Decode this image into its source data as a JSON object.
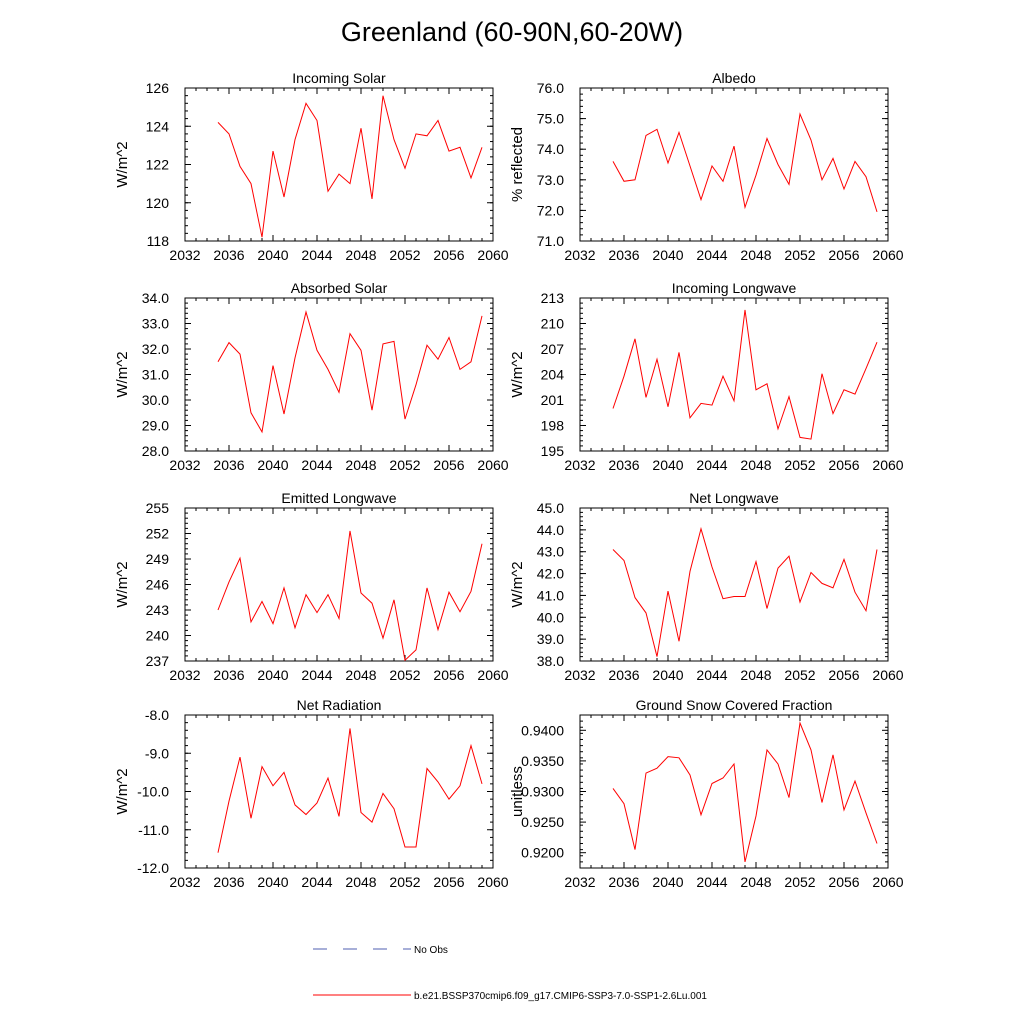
{
  "page": {
    "title": "Greenland (60-90N,60-20W)"
  },
  "legend": {
    "obs_label": "No Obs",
    "obs_color": "#4f5fb0",
    "model_label": "b.e21.BSSP370cmip6.f09_g17.CMIP6-SSP3-7.0-SSP1-2.6Lu.001",
    "model_color": "#ff0000"
  },
  "chart_data": [
    {
      "type": "line",
      "title": "Incoming Solar",
      "ylabel": "W/m^2",
      "xlim": [
        2032,
        2060
      ],
      "ylim": [
        118,
        126
      ],
      "xticks": [
        "2032",
        "2036",
        "2040",
        "2044",
        "2048",
        "2052",
        "2056",
        "2060"
      ],
      "yticks": [
        "118",
        "120",
        "122",
        "124",
        "126"
      ],
      "ytick_values": [
        118,
        120,
        122,
        124,
        126
      ],
      "x": [
        2035,
        2036,
        2037,
        2038,
        2039,
        2040,
        2041,
        2042,
        2043,
        2044,
        2045,
        2046,
        2047,
        2048,
        2049,
        2050,
        2051,
        2052,
        2053,
        2054,
        2055,
        2056,
        2057,
        2058,
        2059
      ],
      "series": [
        {
          "color": "#ff0000",
          "values": [
            124.2,
            123.6,
            121.9,
            121.0,
            118.2,
            122.7,
            120.3,
            123.3,
            125.2,
            124.3,
            120.6,
            121.5,
            121.0,
            123.9,
            120.2,
            125.6,
            123.3,
            121.8,
            123.6,
            123.5,
            124.3,
            122.7,
            122.9,
            121.3,
            122.9
          ]
        }
      ]
    },
    {
      "type": "line",
      "title": "Albedo",
      "ylabel": "% reflected",
      "xlim": [
        2032,
        2060
      ],
      "ylim": [
        71.0,
        76.0
      ],
      "xticks": [
        "2032",
        "2036",
        "2040",
        "2044",
        "2048",
        "2052",
        "2056",
        "2060"
      ],
      "yticks": [
        "71.0",
        "72.0",
        "73.0",
        "74.0",
        "75.0",
        "76.0"
      ],
      "ytick_values": [
        71,
        72,
        73,
        74,
        75,
        76
      ],
      "x": [
        2035,
        2036,
        2037,
        2038,
        2039,
        2040,
        2041,
        2042,
        2043,
        2044,
        2045,
        2046,
        2047,
        2048,
        2049,
        2050,
        2051,
        2052,
        2053,
        2054,
        2055,
        2056,
        2057,
        2058,
        2059
      ],
      "series": [
        {
          "color": "#ff0000",
          "values": [
            73.6,
            72.95,
            73.0,
            74.45,
            74.65,
            73.55,
            74.55,
            73.45,
            72.35,
            73.45,
            72.95,
            74.1,
            72.1,
            73.15,
            74.35,
            73.5,
            72.85,
            75.15,
            74.3,
            73.0,
            73.7,
            72.7,
            73.6,
            73.1,
            71.95
          ]
        }
      ]
    },
    {
      "type": "line",
      "title": "Absorbed Solar",
      "ylabel": "W/m^2",
      "xlim": [
        2032,
        2060
      ],
      "ylim": [
        28.0,
        34.0
      ],
      "xticks": [
        "2032",
        "2036",
        "2040",
        "2044",
        "2048",
        "2052",
        "2056",
        "2060"
      ],
      "yticks": [
        "28.0",
        "29.0",
        "30.0",
        "31.0",
        "32.0",
        "33.0",
        "34.0"
      ],
      "ytick_values": [
        28,
        29,
        30,
        31,
        32,
        33,
        34
      ],
      "x": [
        2035,
        2036,
        2037,
        2038,
        2039,
        2040,
        2041,
        2042,
        2043,
        2044,
        2045,
        2046,
        2047,
        2048,
        2049,
        2050,
        2051,
        2052,
        2053,
        2054,
        2055,
        2056,
        2057,
        2058,
        2059
      ],
      "series": [
        {
          "color": "#ff0000",
          "values": [
            31.5,
            32.25,
            31.8,
            29.5,
            28.75,
            31.35,
            29.45,
            31.65,
            33.45,
            31.95,
            31.2,
            30.3,
            32.6,
            31.95,
            29.6,
            32.2,
            32.3,
            29.25,
            30.6,
            32.15,
            31.6,
            32.45,
            31.2,
            31.5,
            33.3
          ]
        }
      ]
    },
    {
      "type": "line",
      "title": "Incoming Longwave",
      "ylabel": "W/m^2",
      "xlim": [
        2032,
        2060
      ],
      "ylim": [
        195,
        213
      ],
      "xticks": [
        "2032",
        "2036",
        "2040",
        "2044",
        "2048",
        "2052",
        "2056",
        "2060"
      ],
      "yticks": [
        "195",
        "198",
        "201",
        "204",
        "207",
        "210",
        "213"
      ],
      "ytick_values": [
        195,
        198,
        201,
        204,
        207,
        210,
        213
      ],
      "x": [
        2035,
        2036,
        2037,
        2038,
        2039,
        2040,
        2041,
        2042,
        2043,
        2044,
        2045,
        2046,
        2047,
        2048,
        2049,
        2050,
        2051,
        2052,
        2053,
        2054,
        2055,
        2056,
        2057,
        2058,
        2059
      ],
      "series": [
        {
          "color": "#ff0000",
          "values": [
            200.0,
            203.8,
            208.2,
            201.3,
            205.8,
            200.2,
            206.6,
            198.9,
            200.6,
            200.4,
            203.8,
            200.9,
            211.6,
            202.2,
            202.9,
            197.6,
            201.4,
            196.6,
            196.4,
            204.1,
            199.4,
            202.2,
            201.7,
            204.7,
            207.8
          ]
        }
      ]
    },
    {
      "type": "line",
      "title": "Emitted Longwave",
      "ylabel": "W/m^2",
      "xlim": [
        2032,
        2060
      ],
      "ylim": [
        237,
        255
      ],
      "xticks": [
        "2032",
        "2036",
        "2040",
        "2044",
        "2048",
        "2052",
        "2056",
        "2060"
      ],
      "yticks": [
        "237",
        "240",
        "243",
        "246",
        "249",
        "252",
        "255"
      ],
      "ytick_values": [
        237,
        240,
        243,
        246,
        249,
        252,
        255
      ],
      "x": [
        2035,
        2036,
        2037,
        2038,
        2039,
        2040,
        2041,
        2042,
        2043,
        2044,
        2045,
        2046,
        2047,
        2048,
        2049,
        2050,
        2051,
        2052,
        2053,
        2054,
        2055,
        2056,
        2057,
        2058,
        2059
      ],
      "series": [
        {
          "color": "#ff0000",
          "values": [
            243.0,
            246.3,
            249.1,
            241.6,
            244.0,
            241.4,
            245.6,
            240.9,
            244.8,
            242.7,
            244.8,
            242.0,
            252.3,
            245.0,
            243.8,
            239.7,
            244.2,
            237.1,
            238.3,
            245.6,
            240.7,
            245.1,
            242.8,
            245.2,
            250.8
          ]
        }
      ]
    },
    {
      "type": "line",
      "title": "Net Longwave",
      "ylabel": "W/m^2",
      "xlim": [
        2032,
        2060
      ],
      "ylim": [
        38.0,
        45.0
      ],
      "xticks": [
        "2032",
        "2036",
        "2040",
        "2044",
        "2048",
        "2052",
        "2056",
        "2060"
      ],
      "yticks": [
        "38.0",
        "39.0",
        "40.0",
        "41.0",
        "42.0",
        "43.0",
        "44.0",
        "45.0"
      ],
      "ytick_values": [
        38,
        39,
        40,
        41,
        42,
        43,
        44,
        45
      ],
      "x": [
        2035,
        2036,
        2037,
        2038,
        2039,
        2040,
        2041,
        2042,
        2043,
        2044,
        2045,
        2046,
        2047,
        2048,
        2049,
        2050,
        2051,
        2052,
        2053,
        2054,
        2055,
        2056,
        2057,
        2058,
        2059
      ],
      "series": [
        {
          "color": "#ff0000",
          "values": [
            43.1,
            42.6,
            40.9,
            40.2,
            38.2,
            41.2,
            38.9,
            42.1,
            44.05,
            42.3,
            40.85,
            40.95,
            40.95,
            42.55,
            40.4,
            42.25,
            42.8,
            40.7,
            42.05,
            41.55,
            41.35,
            42.65,
            41.15,
            40.3,
            43.1
          ]
        }
      ]
    },
    {
      "type": "line",
      "title": "Net Radiation",
      "ylabel": "W/m^2",
      "xlim": [
        2032,
        2060
      ],
      "ylim": [
        -12.0,
        -8.0
      ],
      "xticks": [
        "2032",
        "2036",
        "2040",
        "2044",
        "2048",
        "2052",
        "2056",
        "2060"
      ],
      "yticks": [
        "-12.0",
        "-11.0",
        "-10.0",
        "-9.0",
        "-8.0"
      ],
      "ytick_values": [
        -12,
        -11,
        -10,
        -9,
        -8
      ],
      "x": [
        2035,
        2036,
        2037,
        2038,
        2039,
        2040,
        2041,
        2042,
        2043,
        2044,
        2045,
        2046,
        2047,
        2048,
        2049,
        2050,
        2051,
        2052,
        2053,
        2054,
        2055,
        2056,
        2057,
        2058,
        2059
      ],
      "series": [
        {
          "color": "#ff0000",
          "values": [
            -11.6,
            -10.25,
            -9.1,
            -10.7,
            -9.35,
            -9.85,
            -9.5,
            -10.35,
            -10.6,
            -10.3,
            -9.65,
            -10.65,
            -8.35,
            -10.55,
            -10.8,
            -10.05,
            -10.45,
            -11.45,
            -11.45,
            -9.4,
            -9.75,
            -10.2,
            -9.85,
            -8.8,
            -9.8
          ]
        }
      ]
    },
    {
      "type": "line",
      "title": "Ground Snow Covered Fraction",
      "ylabel": "unitless",
      "xlim": [
        2032,
        2060
      ],
      "ylim": [
        0.9175,
        0.9425
      ],
      "xticks": [
        "2032",
        "2036",
        "2040",
        "2044",
        "2048",
        "2052",
        "2056",
        "2060"
      ],
      "yticks": [
        "0.9200",
        "0.9250",
        "0.9300",
        "0.9350",
        "0.9400"
      ],
      "ytick_values": [
        0.92,
        0.925,
        0.93,
        0.935,
        0.94
      ],
      "x": [
        2035,
        2036,
        2037,
        2038,
        2039,
        2040,
        2041,
        2042,
        2043,
        2044,
        2045,
        2046,
        2047,
        2048,
        2049,
        2050,
        2051,
        2052,
        2053,
        2054,
        2055,
        2056,
        2057,
        2058,
        2059
      ],
      "series": [
        {
          "color": "#ff0000",
          "values": [
            0.9305,
            0.928,
            0.9205,
            0.933,
            0.9338,
            0.9357,
            0.9355,
            0.9327,
            0.9262,
            0.9313,
            0.9322,
            0.9345,
            0.9185,
            0.926,
            0.9368,
            0.9345,
            0.929,
            0.9412,
            0.9368,
            0.9282,
            0.936,
            0.927,
            0.9317,
            0.9265,
            0.9215
          ]
        }
      ]
    }
  ]
}
